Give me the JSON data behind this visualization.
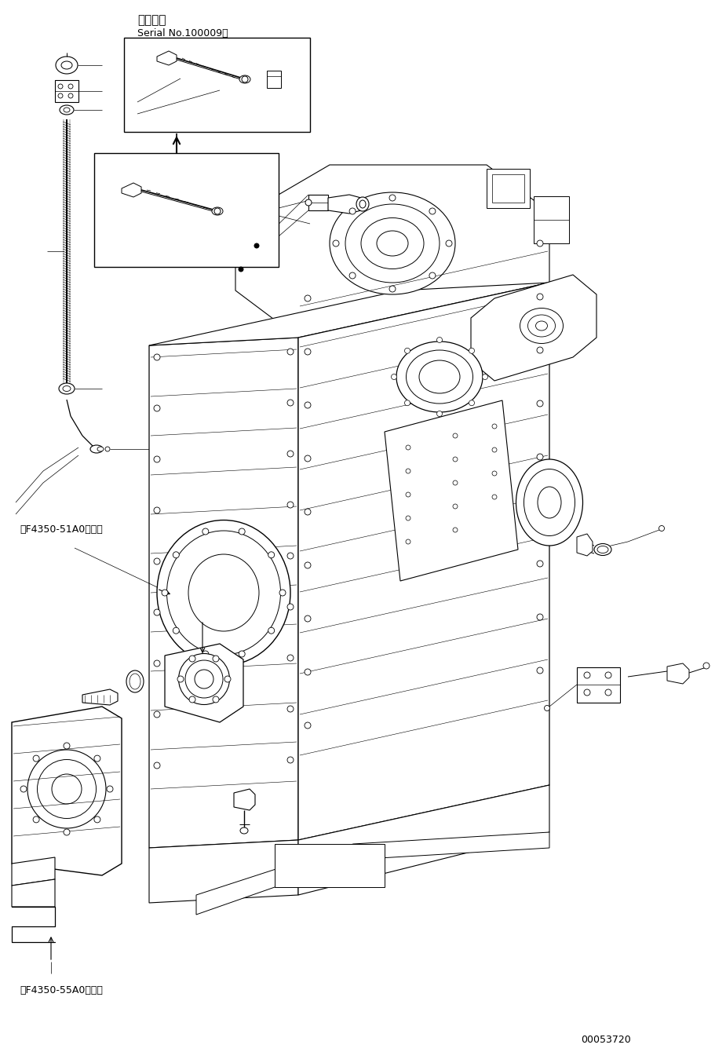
{
  "background_color": "#ffffff",
  "line_color": "#000000",
  "title_top_left": "適用号機",
  "serial_text": "Serial No.100009～",
  "ref_text_1": "第F4350-51A0図参照",
  "ref_text_2": "第F4350-55A0図参照",
  "part_number": "00053720",
  "fig_width": 9.25,
  "fig_height": 13.4,
  "dpi": 100
}
